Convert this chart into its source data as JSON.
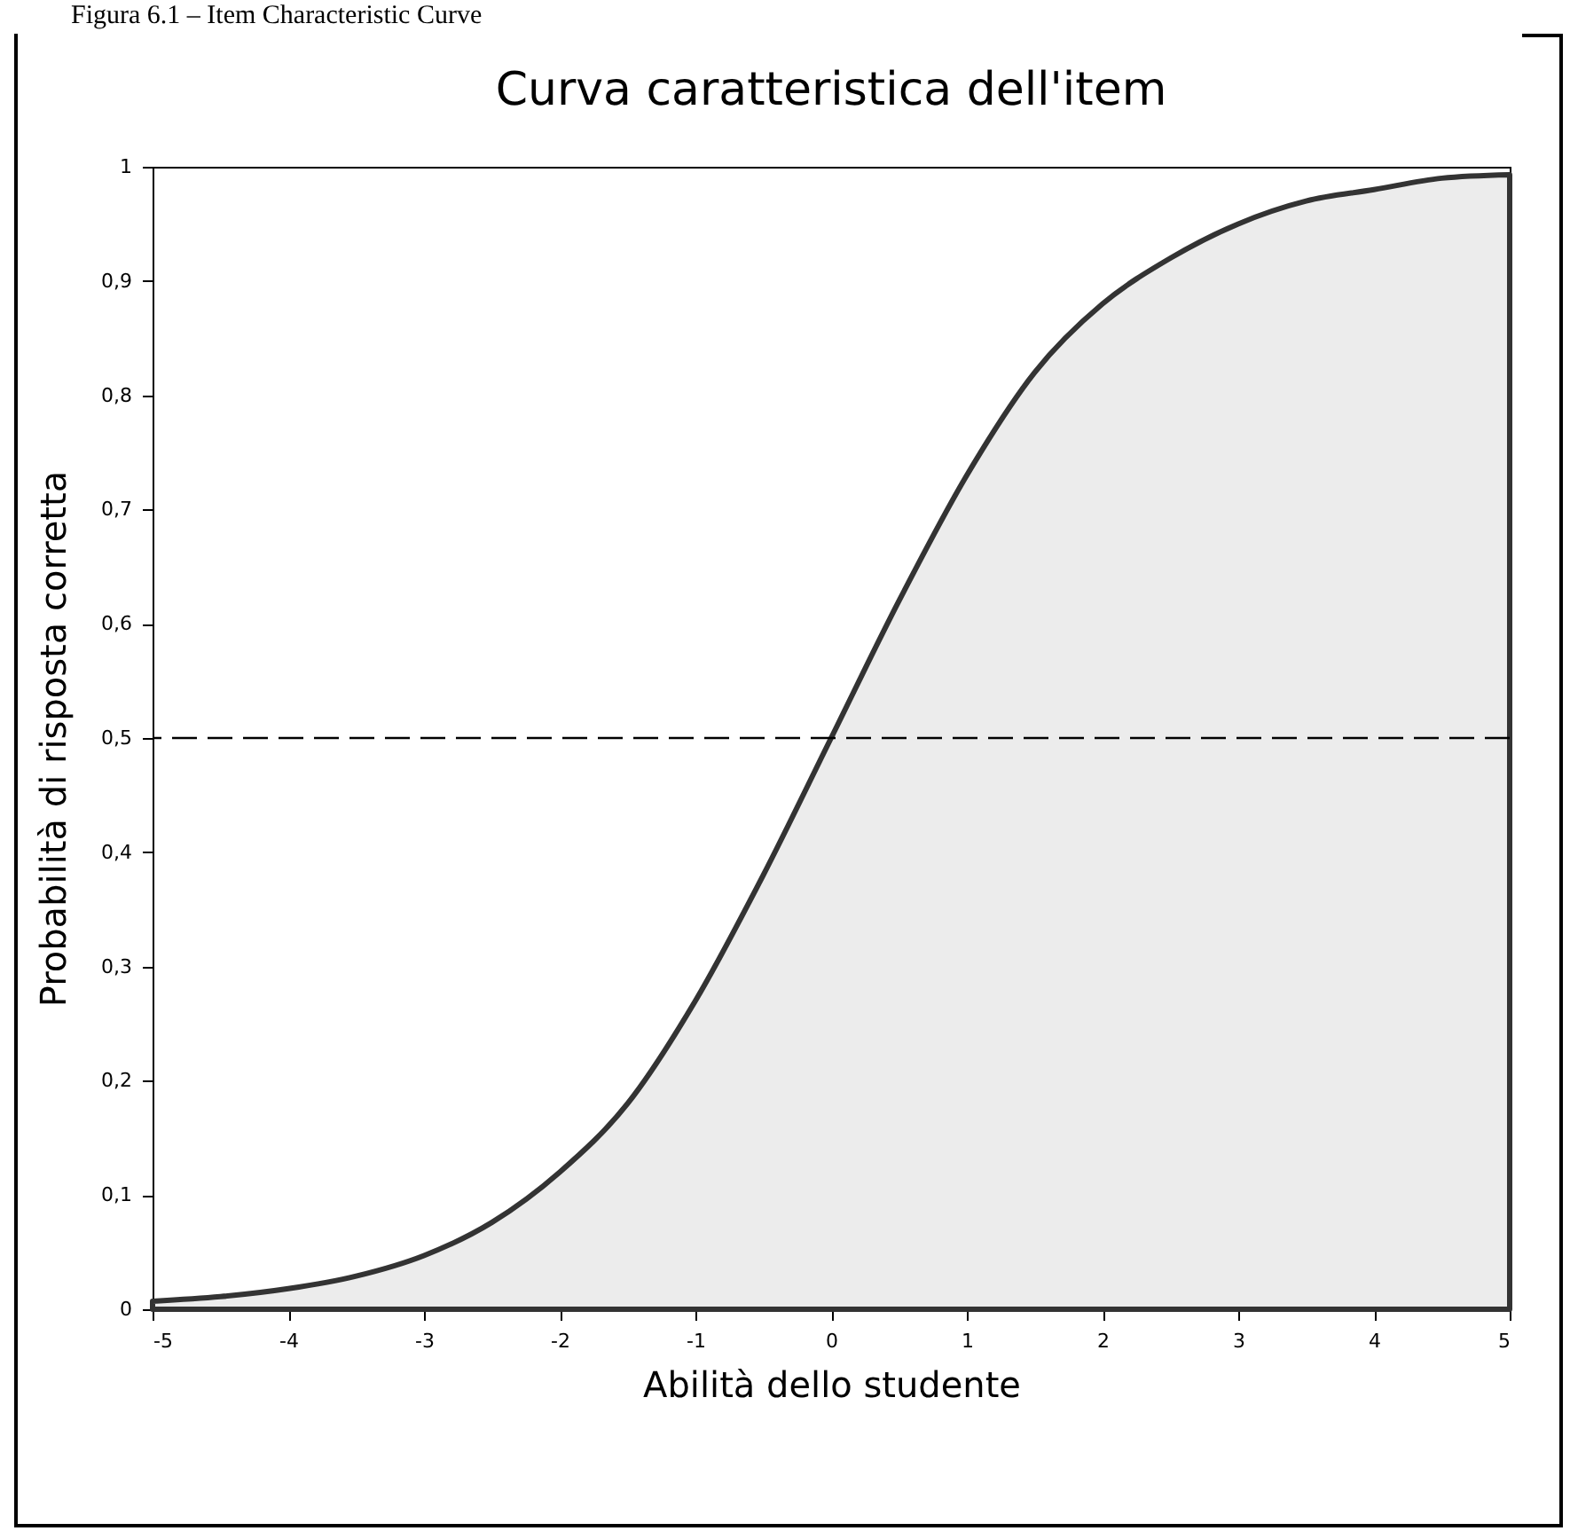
{
  "chart_data": {
    "type": "area",
    "title": "Curva caratteristica dell'item",
    "xlabel": "Abilità dello studente",
    "ylabel": "Probabilità di risposta corretta",
    "annotations": [
      "Figura 6.1 – Item Characteristic Curve"
    ],
    "x": [
      -5,
      -4.5,
      -4,
      -3.5,
      -3,
      -2.5,
      -2,
      -1.5,
      -1,
      -0.5,
      0,
      0.5,
      1,
      1.5,
      2,
      2.5,
      3,
      3.5,
      4,
      4.5,
      5
    ],
    "series": [
      {
        "color": "#333333",
        "values": [
          0.007,
          0.011,
          0.018,
          0.029,
          0.047,
          0.076,
          0.12,
          0.18,
          0.27,
          0.38,
          0.5,
          0.62,
          0.73,
          0.82,
          0.88,
          0.92,
          0.95,
          0.97,
          0.98,
          0.99,
          0.993
        ]
      }
    ],
    "xlim": [
      -5,
      5
    ],
    "xticks": [
      -5,
      -4,
      -3,
      -2,
      -1,
      0,
      1,
      2,
      3,
      4,
      5
    ],
    "ylim": [
      0,
      1
    ],
    "yticks": [
      0,
      {
        "value": 0.1,
        "label": "0,1"
      },
      {
        "value": 0.2,
        "label": "0,2"
      },
      {
        "value": 0.3,
        "label": "0,3"
      },
      {
        "value": 0.4,
        "label": "0,4"
      },
      {
        "value": 0.5,
        "label": "0,5"
      },
      {
        "value": 0.6,
        "label": "0,6"
      },
      {
        "value": 0.7,
        "label": "0,7"
      },
      {
        "value": 0.8,
        "label": "0,8"
      },
      {
        "value": 0.9,
        "label": "0,9"
      },
      1
    ],
    "ref_lines": [
      {
        "axis": "y",
        "value": 0.5,
        "color": "#000000",
        "line_style": "dashed"
      }
    ],
    "grid": false
  }
}
